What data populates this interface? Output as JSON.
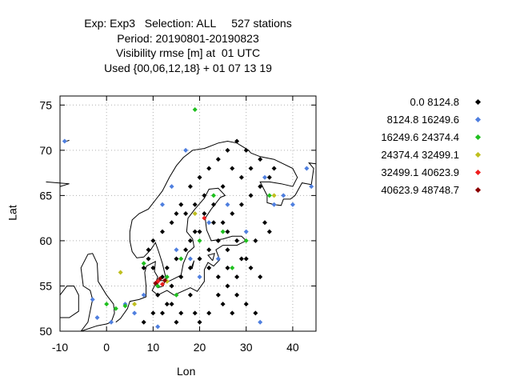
{
  "header": {
    "line1": "Exp: Exp3   Selection: ALL     527 stations",
    "line2": "Period: 20190801-20190823",
    "line3": "Visibility rmse [m] at  01 UTC",
    "line4": "Used {00,06,12,18} + 01 07 13 19"
  },
  "chart_data": {
    "type": "scatter",
    "xlabel": "Lon",
    "ylabel": "Lat",
    "xlim": [
      -10,
      45
    ],
    "ylim": [
      50,
      76
    ],
    "xticks": [
      -10,
      0,
      10,
      20,
      30,
      40
    ],
    "yticks": [
      50,
      55,
      60,
      65,
      70,
      75
    ],
    "grid": true,
    "legend_position": "right",
    "series": [
      {
        "name": "0.0 8124.8",
        "color": "#000000",
        "points": [
          [
            12,
            52
          ],
          [
            14,
            53
          ],
          [
            18,
            54
          ],
          [
            16,
            52
          ],
          [
            20,
            51
          ],
          [
            22,
            52
          ],
          [
            24,
            54
          ],
          [
            28,
            56
          ],
          [
            26,
            57
          ],
          [
            30,
            58
          ],
          [
            32,
            60
          ],
          [
            35,
            61
          ],
          [
            34,
            62
          ],
          [
            28,
            60
          ],
          [
            26,
            61
          ],
          [
            24,
            60
          ],
          [
            22,
            59
          ],
          [
            18,
            57
          ],
          [
            16,
            56
          ],
          [
            14,
            55
          ],
          [
            12,
            56
          ],
          [
            10,
            57
          ],
          [
            9,
            58
          ],
          [
            8,
            57
          ],
          [
            9,
            59
          ],
          [
            10,
            60
          ],
          [
            12,
            61
          ],
          [
            14,
            62
          ],
          [
            15,
            63
          ],
          [
            16,
            64
          ],
          [
            18,
            66
          ],
          [
            20,
            67
          ],
          [
            22,
            68
          ],
          [
            24,
            69
          ],
          [
            26,
            70
          ],
          [
            28,
            71
          ],
          [
            30,
            70
          ],
          [
            27,
            68
          ],
          [
            25,
            66
          ],
          [
            23,
            64
          ],
          [
            21,
            63
          ],
          [
            19,
            61
          ],
          [
            17,
            59
          ],
          [
            15,
            58
          ],
          [
            13,
            57
          ],
          [
            20,
            58
          ],
          [
            22,
            57
          ],
          [
            24,
            56
          ],
          [
            26,
            55
          ],
          [
            28,
            54
          ],
          [
            30,
            53
          ],
          [
            32,
            52
          ],
          [
            25,
            62
          ],
          [
            27,
            63
          ],
          [
            29,
            64
          ],
          [
            31,
            65
          ],
          [
            33,
            66
          ],
          [
            35,
            67
          ],
          [
            36,
            68
          ],
          [
            33,
            69
          ],
          [
            31,
            68
          ],
          [
            29,
            67
          ],
          [
            21,
            65
          ],
          [
            19,
            64
          ],
          [
            17,
            63
          ],
          [
            18,
            60
          ],
          [
            20,
            61
          ],
          [
            23,
            62
          ],
          [
            26,
            59
          ],
          [
            29,
            58
          ],
          [
            31,
            57
          ],
          [
            33,
            56
          ],
          [
            27,
            52
          ],
          [
            25,
            53
          ],
          [
            19,
            52
          ],
          [
            15,
            51
          ],
          [
            13,
            53
          ],
          [
            11,
            54
          ],
          [
            10,
            52
          ],
          [
            8,
            51
          ]
        ]
      },
      {
        "name": "8124.8 16249.6",
        "color": "#4f7fdf",
        "points": [
          [
            -9,
            71
          ],
          [
            -3,
            53.5
          ],
          [
            -2,
            51.5
          ],
          [
            1,
            51
          ],
          [
            4,
            53
          ],
          [
            6,
            52
          ],
          [
            8,
            54
          ],
          [
            11,
            50.5
          ],
          [
            15,
            59
          ],
          [
            18,
            58
          ],
          [
            20,
            56
          ],
          [
            24,
            58
          ],
          [
            30,
            61
          ],
          [
            36,
            64
          ],
          [
            38,
            65
          ],
          [
            40,
            64
          ],
          [
            43,
            68
          ],
          [
            44,
            66
          ],
          [
            34,
            67
          ],
          [
            26,
            64
          ],
          [
            22,
            62
          ],
          [
            17,
            70
          ],
          [
            14,
            66
          ],
          [
            12,
            64
          ],
          [
            33,
            51
          ]
        ]
      },
      {
        "name": "16249.6 24374.4",
        "color": "#1fbf1f",
        "points": [
          [
            19,
            74.5
          ],
          [
            0,
            53
          ],
          [
            2,
            52.5
          ],
          [
            4,
            52.8
          ],
          [
            8,
            57.5
          ],
          [
            11,
            55
          ],
          [
            13,
            56
          ],
          [
            15,
            54
          ],
          [
            23,
            65
          ],
          [
            25,
            61
          ],
          [
            27,
            57
          ],
          [
            30,
            60
          ],
          [
            35,
            65
          ],
          [
            16,
            58
          ],
          [
            20,
            60
          ]
        ]
      },
      {
        "name": "24374.4 32499.1",
        "color": "#bfbf1f",
        "points": [
          [
            3,
            56.5
          ],
          [
            6,
            53
          ],
          [
            13,
            55.5
          ],
          [
            19,
            63
          ],
          [
            36,
            65
          ]
        ]
      },
      {
        "name": "32499.1 40623.9",
        "color": "#ef1f1f",
        "points": [
          [
            11,
            55.5
          ],
          [
            12,
            55.2
          ],
          [
            21,
            62.5
          ]
        ]
      },
      {
        "name": "40623.9 48748.7",
        "color": "#8b0000",
        "points": [
          [
            10.5,
            55.3
          ],
          [
            11.5,
            55.8
          ],
          [
            12.5,
            55.6
          ]
        ]
      }
    ]
  }
}
